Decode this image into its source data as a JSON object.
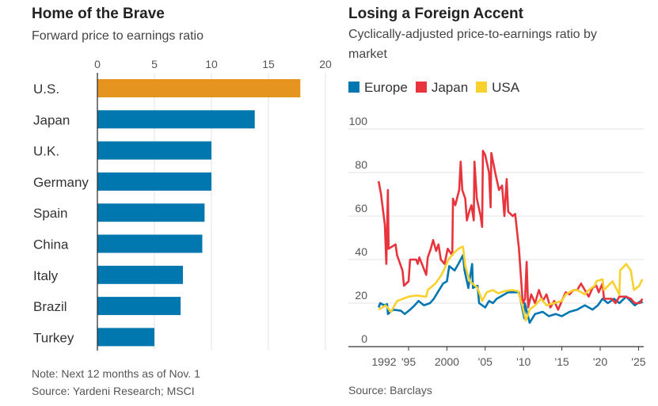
{
  "chart_data": [
    {
      "type": "bar",
      "orientation": "horizontal",
      "title": "Home of the Brave",
      "subtitle": "Forward price to earnings ratio",
      "categories": [
        "U.S.",
        "Japan",
        "U.K.",
        "Germany",
        "Spain",
        "China",
        "Italy",
        "Brazil",
        "Turkey"
      ],
      "values": [
        17.8,
        13.8,
        10.0,
        10.0,
        9.4,
        9.2,
        7.5,
        7.3,
        5.0
      ],
      "highlight": "U.S.",
      "colors": {
        "highlight": "#e5941f",
        "default": "#0077ae"
      },
      "xlim": [
        0,
        20
      ],
      "xticks": [
        "0",
        "5",
        "10",
        "15",
        "20"
      ],
      "tick_values": [
        0,
        5,
        10,
        15,
        20
      ],
      "grid": true,
      "note": "Note: Next 12 months as of Nov. 1",
      "source": "Source: Yardeni Research; MSCI"
    },
    {
      "type": "line",
      "title": "Losing a Foreign Accent",
      "subtitle_lines": [
        "Cyclically-adjusted price-to-earnings ratio by",
        "market"
      ],
      "ylim": [
        0,
        100
      ],
      "yticks": [
        "100",
        "80",
        "60",
        "40",
        "20",
        "0"
      ],
      "ytick_values": [
        100,
        80,
        60,
        40,
        20,
        0
      ],
      "xlim": [
        1990,
        2025.7
      ],
      "xticks": [
        "1992",
        "'95",
        "2000",
        "'05",
        "'10",
        "'15",
        "'20",
        "'25"
      ],
      "xtick_values": [
        1992,
        1995,
        2000,
        2005,
        2010,
        2015,
        2020,
        2025
      ],
      "grid": true,
      "legend_placement": "top-left",
      "source": "Source: Barclays",
      "series": [
        {
          "name": "Europe",
          "color": "#0077b0",
          "points": [
            [
              1991.1,
              18
            ],
            [
              1991.3,
              20
            ],
            [
              1991.8,
              19
            ],
            [
              1992.2,
              19.5
            ],
            [
              1992.3,
              15
            ],
            [
              1993,
              17
            ],
            [
              1994,
              16.5
            ],
            [
              1994.5,
              15
            ],
            [
              1995.2,
              17
            ],
            [
              1995.8,
              19
            ],
            [
              1996.3,
              21
            ],
            [
              1997,
              19
            ],
            [
              1997.8,
              20
            ],
            [
              1998.3,
              22
            ],
            [
              1998.8,
              25
            ],
            [
              1999.5,
              29
            ],
            [
              2000,
              30
            ],
            [
              2000.3,
              37
            ],
            [
              2001,
              35
            ],
            [
              2001.5,
              38
            ],
            [
              2002.1,
              42
            ],
            [
              2002.3,
              35
            ],
            [
              2002.8,
              27
            ],
            [
              2003.3,
              38
            ],
            [
              2003.4,
              27
            ],
            [
              2004,
              28
            ],
            [
              2004.2,
              20
            ],
            [
              2005,
              18
            ],
            [
              2005.5,
              21
            ],
            [
              2006,
              20
            ],
            [
              2006.5,
              22
            ],
            [
              2008,
              25
            ],
            [
              2009.4,
              25
            ],
            [
              2010.1,
              13
            ],
            [
              2010.15,
              20
            ],
            [
              2010.8,
              11
            ],
            [
              2011.5,
              15
            ],
            [
              2012.5,
              16
            ],
            [
              2013.3,
              14
            ],
            [
              2014.2,
              15
            ],
            [
              2015,
              14
            ],
            [
              2016,
              16
            ],
            [
              2017,
              17
            ],
            [
              2018,
              19
            ],
            [
              2019,
              17
            ],
            [
              2019.7,
              19
            ],
            [
              2020.3,
              22
            ],
            [
              2021,
              20
            ],
            [
              2021.8,
              22
            ],
            [
              2022.5,
              20
            ],
            [
              2023.4,
              23
            ],
            [
              2024.5,
              19
            ],
            [
              2025.3,
              21
            ],
            [
              2025.5,
              20
            ]
          ]
        },
        {
          "name": "Japan",
          "color": "#e8343c",
          "points": [
            [
              1991.1,
              76
            ],
            [
              1991.4,
              70
            ],
            [
              1991.9,
              56
            ],
            [
              1992.1,
              38
            ],
            [
              1992.3,
              72
            ],
            [
              1992.4,
              45
            ],
            [
              1993.3,
              47
            ],
            [
              1993.5,
              42
            ],
            [
              1994.2,
              35
            ],
            [
              1994.4,
              28
            ],
            [
              1995,
              30
            ],
            [
              1995.2,
              40
            ],
            [
              1996,
              40
            ],
            [
              1996.2,
              38
            ],
            [
              1996.4,
              41
            ],
            [
              1997.3,
              33
            ],
            [
              1997.5,
              41
            ],
            [
              1997.9,
              45
            ],
            [
              1998.2,
              49
            ],
            [
              1998.6,
              44
            ],
            [
              1998.9,
              47
            ],
            [
              1999.2,
              40
            ],
            [
              1999.7,
              38
            ],
            [
              2000.1,
              45
            ],
            [
              2000.5,
              43
            ],
            [
              2000.7,
              42
            ],
            [
              2000.8,
              68
            ],
            [
              2001.1,
              65
            ],
            [
              2001.6,
              72
            ],
            [
              2001.8,
              85
            ],
            [
              2002,
              72
            ],
            [
              2002.4,
              68
            ],
            [
              2002.6,
              58
            ],
            [
              2002.9,
              62
            ],
            [
              2003.2,
              65
            ],
            [
              2003.5,
              58
            ],
            [
              2003.6,
              85
            ],
            [
              2003.9,
              68
            ],
            [
              2004.4,
              60
            ],
            [
              2004.6,
              55
            ],
            [
              2004.7,
              90
            ],
            [
              2005,
              88
            ],
            [
              2005.5,
              80
            ],
            [
              2005.7,
              64
            ],
            [
              2005.8,
              89
            ],
            [
              2006.3,
              80
            ],
            [
              2006.8,
              72
            ],
            [
              2007.2,
              74
            ],
            [
              2007.5,
              60
            ],
            [
              2007.8,
              77
            ],
            [
              2008,
              62
            ],
            [
              2008.6,
              60
            ],
            [
              2008.9,
              61
            ],
            [
              2009.4,
              45
            ],
            [
              2009.9,
              20
            ],
            [
              2010.2,
              22
            ],
            [
              2010.4,
              39
            ],
            [
              2010.6,
              18
            ],
            [
              2011,
              24
            ],
            [
              2011.5,
              20
            ],
            [
              2012,
              26
            ],
            [
              2012.5,
              21
            ],
            [
              2013,
              24
            ],
            [
              2013.5,
              18
            ],
            [
              2014,
              21
            ],
            [
              2014.5,
              17
            ],
            [
              2015,
              21
            ],
            [
              2015.5,
              25
            ],
            [
              2016,
              24
            ],
            [
              2016.5,
              26
            ],
            [
              2017,
              26
            ],
            [
              2017.5,
              29
            ],
            [
              2018,
              26
            ],
            [
              2018.5,
              23
            ],
            [
              2019,
              27
            ],
            [
              2019.5,
              28
            ],
            [
              2019.8,
              25
            ],
            [
              2020.3,
              29
            ],
            [
              2020.5,
              22
            ],
            [
              2021.5,
              22
            ],
            [
              2022,
              20
            ],
            [
              2022.5,
              23
            ],
            [
              2023.3,
              23
            ],
            [
              2024,
              22
            ],
            [
              2024.5,
              20
            ],
            [
              2025.2,
              20
            ],
            [
              2025.5,
              22
            ]
          ]
        },
        {
          "name": "USA",
          "color": "#f8d12d",
          "points": [
            [
              1991.1,
              17
            ],
            [
              1992,
              19
            ],
            [
              1992.7,
              16
            ],
            [
              1993.5,
              21
            ],
            [
              1995,
              23
            ],
            [
              1996,
              23.5
            ],
            [
              1997.3,
              23
            ],
            [
              1997.5,
              26
            ],
            [
              1998.5,
              29
            ],
            [
              1999.3,
              33
            ],
            [
              1999.7,
              36
            ],
            [
              2000.2,
              40
            ],
            [
              2000.9,
              43
            ],
            [
              2001.5,
              45
            ],
            [
              2002.1,
              46
            ],
            [
              2002.4,
              37
            ],
            [
              2003,
              30
            ],
            [
              2004,
              27
            ],
            [
              2004.6,
              21
            ],
            [
              2005.2,
              25
            ],
            [
              2006,
              26
            ],
            [
              2006.7,
              24.5
            ],
            [
              2007.5,
              25.5
            ],
            [
              2008.5,
              26
            ],
            [
              2009.3,
              25.5
            ],
            [
              2009.9,
              18
            ],
            [
              2010.3,
              12
            ],
            [
              2010.8,
              17
            ],
            [
              2011.5,
              19
            ],
            [
              2012.3,
              22
            ],
            [
              2013,
              19
            ],
            [
              2014,
              20
            ],
            [
              2015,
              21
            ],
            [
              2015.5,
              24
            ],
            [
              2016.5,
              26
            ],
            [
              2017,
              26
            ],
            [
              2018,
              24
            ],
            [
              2018.5,
              26
            ],
            [
              2019.3,
              28
            ],
            [
              2019.5,
              30
            ],
            [
              2020.3,
              31
            ],
            [
              2020.5,
              26
            ],
            [
              2021.6,
              30
            ],
            [
              2022.5,
              24
            ],
            [
              2022.6,
              35
            ],
            [
              2023.4,
              38
            ],
            [
              2024,
              35
            ],
            [
              2024.4,
              26
            ],
            [
              2025.1,
              28
            ],
            [
              2025.5,
              31
            ]
          ]
        }
      ]
    }
  ]
}
